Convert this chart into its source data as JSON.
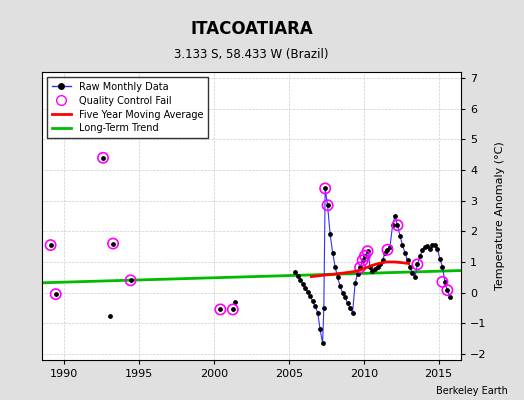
{
  "title": "ITACOATIARA",
  "subtitle": "3.133 S, 58.433 W (Brazil)",
  "ylabel": "Temperature Anomaly (°C)",
  "attribution": "Berkeley Earth",
  "xlim": [
    1988.5,
    2016.5
  ],
  "ylim": [
    -2.2,
    7.2
  ],
  "yticks": [
    -2,
    -1,
    0,
    1,
    2,
    3,
    4,
    5,
    6,
    7
  ],
  "xticks": [
    1990,
    1995,
    2000,
    2005,
    2010,
    2015
  ],
  "bg_color": "#e0e0e0",
  "plot_bg_color": "#ffffff",
  "connected_segments": [
    [
      [
        2005.42,
        0.68
      ],
      [
        2005.58,
        0.55
      ],
      [
        2005.75,
        0.42
      ],
      [
        2005.92,
        0.28
      ],
      [
        2006.08,
        0.15
      ],
      [
        2006.25,
        0.02
      ],
      [
        2006.42,
        -0.12
      ],
      [
        2006.58,
        -0.28
      ],
      [
        2006.75,
        -0.45
      ],
      [
        2006.92,
        -0.65
      ],
      [
        2007.08,
        -1.2
      ],
      [
        2007.25,
        -1.65
      ],
      [
        2007.33,
        -0.5
      ],
      [
        2007.42,
        3.4
      ],
      [
        2007.58,
        2.85
      ],
      [
        2007.75,
        1.9
      ],
      [
        2007.92,
        1.3
      ],
      [
        2008.08,
        0.85
      ],
      [
        2008.25,
        0.5
      ],
      [
        2008.42,
        0.2
      ],
      [
        2008.58,
        0.0
      ],
      [
        2008.75,
        -0.15
      ],
      [
        2008.92,
        -0.35
      ],
      [
        2009.08,
        -0.5
      ],
      [
        2009.25,
        -0.65
      ],
      [
        2009.42,
        0.3
      ],
      [
        2009.58,
        0.62
      ],
      [
        2009.75,
        0.82
      ],
      [
        2009.92,
        1.05
      ],
      [
        2010.08,
        1.2
      ],
      [
        2010.25,
        1.35
      ],
      [
        2010.42,
        0.85
      ],
      [
        2010.58,
        0.72
      ],
      [
        2010.75,
        0.78
      ],
      [
        2010.92,
        0.85
      ],
      [
        2011.08,
        0.92
      ],
      [
        2011.25,
        1.05
      ],
      [
        2011.42,
        1.3
      ],
      [
        2011.58,
        1.4
      ],
      [
        2011.75,
        1.5
      ],
      [
        2011.92,
        2.2
      ],
      [
        2012.08,
        2.5
      ],
      [
        2012.25,
        2.2
      ],
      [
        2012.42,
        1.85
      ],
      [
        2012.58,
        1.55
      ],
      [
        2012.75,
        1.3
      ],
      [
        2012.92,
        1.05
      ],
      [
        2013.08,
        0.82
      ],
      [
        2013.25,
        0.65
      ],
      [
        2013.42,
        0.52
      ],
      [
        2013.58,
        0.92
      ],
      [
        2013.75,
        1.2
      ],
      [
        2013.92,
        1.38
      ],
      [
        2014.08,
        1.5
      ],
      [
        2014.25,
        1.52
      ],
      [
        2014.42,
        1.42
      ],
      [
        2014.58,
        1.55
      ],
      [
        2014.75,
        1.55
      ],
      [
        2014.92,
        1.42
      ],
      [
        2015.08,
        1.1
      ],
      [
        2015.25,
        0.85
      ],
      [
        2015.42,
        0.35
      ],
      [
        2015.58,
        0.08
      ],
      [
        2015.75,
        -0.15
      ]
    ]
  ],
  "isolated_points": [
    [
      1989.08,
      1.55
    ],
    [
      1989.42,
      -0.05
    ],
    [
      1992.58,
      4.4
    ],
    [
      1993.08,
      -0.75
    ],
    [
      1993.25,
      1.6
    ],
    [
      1994.42,
      0.4
    ],
    [
      2000.42,
      -0.55
    ],
    [
      2001.25,
      -0.55
    ],
    [
      2001.42,
      -0.3
    ]
  ],
  "qc_fail": [
    [
      1989.08,
      1.55
    ],
    [
      1989.42,
      -0.05
    ],
    [
      1992.58,
      4.4
    ],
    [
      1993.25,
      1.6
    ],
    [
      1994.42,
      0.4
    ],
    [
      2000.42,
      -0.55
    ],
    [
      2001.25,
      -0.55
    ],
    [
      2007.42,
      3.4
    ],
    [
      2007.58,
      2.85
    ],
    [
      2009.75,
      0.82
    ],
    [
      2009.92,
      1.05
    ],
    [
      2010.08,
      1.2
    ],
    [
      2010.25,
      1.35
    ],
    [
      2011.58,
      1.4
    ],
    [
      2012.25,
      2.2
    ],
    [
      2013.58,
      0.92
    ],
    [
      2015.25,
      0.35
    ],
    [
      2015.58,
      0.08
    ]
  ],
  "moving_avg": [
    [
      2006.5,
      0.52
    ],
    [
      2007.0,
      0.55
    ],
    [
      2007.5,
      0.58
    ],
    [
      2008.0,
      0.6
    ],
    [
      2008.5,
      0.63
    ],
    [
      2009.0,
      0.66
    ],
    [
      2009.5,
      0.7
    ],
    [
      2010.0,
      0.78
    ],
    [
      2010.5,
      0.88
    ],
    [
      2011.0,
      0.95
    ],
    [
      2011.5,
      1.0
    ],
    [
      2012.0,
      1.0
    ],
    [
      2012.5,
      0.98
    ],
    [
      2013.0,
      0.95
    ]
  ],
  "trend_x": [
    1988.5,
    2016.5
  ],
  "trend_y": [
    0.32,
    0.72
  ],
  "raw_color": "#3030ff",
  "marker_color": "#000000",
  "qc_color": "#ff00ff",
  "mavg_color": "#ff0000",
  "trend_color": "#00bb00",
  "grid_color": "#cccccc"
}
